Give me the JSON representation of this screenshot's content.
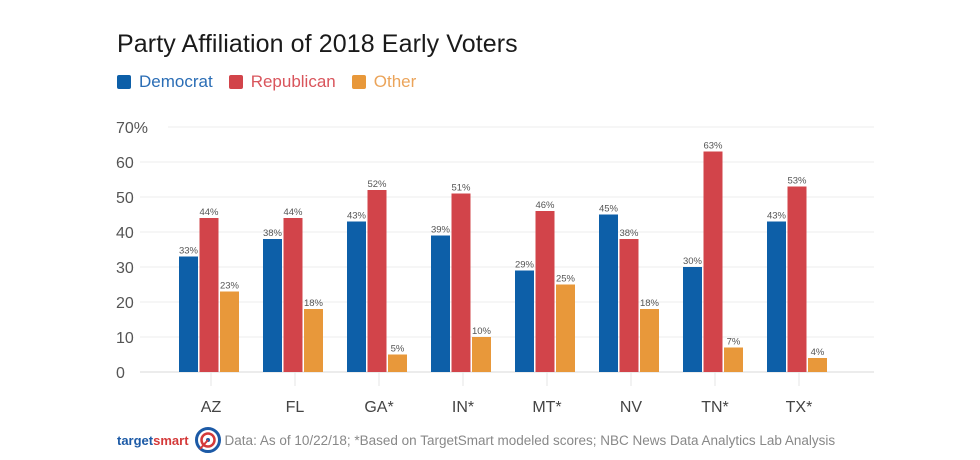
{
  "chart_data": {
    "type": "bar",
    "title": "Party Affiliation of 2018 Early Voters",
    "xlabel": "",
    "ylabel": "",
    "ylim": [
      0,
      70
    ],
    "yticks": [
      0,
      10,
      20,
      30,
      40,
      50,
      60,
      70
    ],
    "ytick_labels": [
      "0",
      "10",
      "20",
      "30",
      "40",
      "50",
      "60",
      "70%"
    ],
    "grid": true,
    "legend_position": "top-left",
    "categories": [
      "AZ",
      "FL",
      "GA*",
      "IN*",
      "MT*",
      "NV",
      "TN*",
      "TX*"
    ],
    "series": [
      {
        "name": "Democrat",
        "color": "#0d5fa8",
        "values": [
          33,
          38,
          43,
          39,
          29,
          45,
          30,
          43
        ]
      },
      {
        "name": "Republican",
        "color": "#d2444a",
        "values": [
          44,
          44,
          52,
          51,
          46,
          38,
          63,
          53
        ]
      },
      {
        "name": "Other",
        "color": "#e8983a",
        "values": [
          23,
          18,
          5,
          10,
          25,
          18,
          7,
          4
        ]
      }
    ],
    "value_label_suffix": "%"
  },
  "legend_text_colors": [
    "#2a6db5",
    "#d9555c",
    "#eba45a"
  ],
  "footer": {
    "brand_part1": "target",
    "brand_part2": "smart",
    "source_note": "Data: As of 10/22/18; *Based on TargetSmart modeled scores; NBC News Data Analytics Lab Analysis",
    "logo_icon": "target-bullseye-icon"
  }
}
